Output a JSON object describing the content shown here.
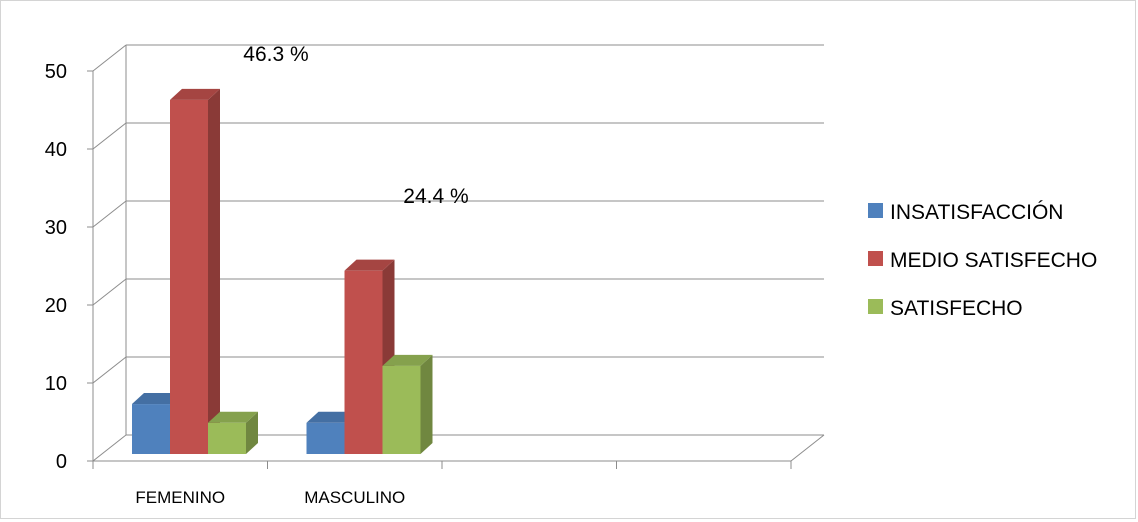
{
  "chart_data": {
    "type": "bar",
    "categories": [
      "FEMENINO",
      "MASCULINO"
    ],
    "series": [
      {
        "name": "INSATISFACCIÓN",
        "values": [
          7.3,
          4.9
        ],
        "color": "#4f81bd"
      },
      {
        "name": "MEDIO SATISFECHO",
        "values": [
          46.3,
          24.4
        ],
        "color": "#c0504d"
      },
      {
        "name": "SATISFECHO",
        "values": [
          4.9,
          12.2
        ],
        "color": "#9bbb59"
      }
    ],
    "ylim": [
      0,
      50
    ],
    "yticks": [
      0,
      10,
      20,
      30,
      40,
      50
    ],
    "annotations": [
      "46.3 %",
      "24.4 %"
    ],
    "legend_position": "right",
    "grid": true,
    "style": "3d-column"
  }
}
